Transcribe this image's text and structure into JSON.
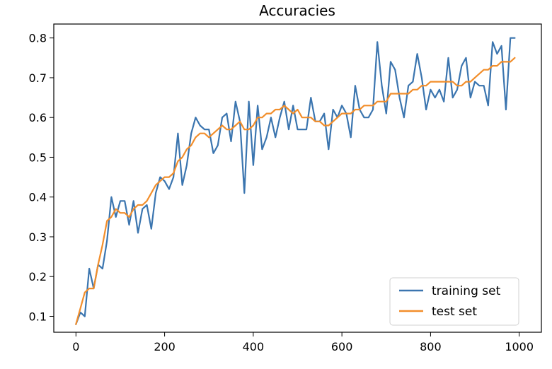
{
  "chart_data": {
    "type": "line",
    "title": "Accuracies",
    "xlabel": "",
    "ylabel": "",
    "xlim": [
      -50,
      1050
    ],
    "ylim": [
      0.06,
      0.835
    ],
    "xticks": [
      0,
      200,
      400,
      600,
      800,
      1000
    ],
    "yticks": [
      0.1,
      0.2,
      0.3,
      0.4,
      0.5,
      0.6,
      0.7,
      0.8
    ],
    "grid": false,
    "legend_position": "lower-right",
    "series": [
      {
        "name": "training set",
        "color": "#3b75af",
        "x": [
          0,
          10,
          20,
          30,
          40,
          50,
          60,
          70,
          80,
          90,
          100,
          110,
          120,
          130,
          140,
          150,
          160,
          170,
          180,
          190,
          200,
          210,
          220,
          230,
          240,
          250,
          260,
          270,
          280,
          290,
          300,
          310,
          320,
          330,
          340,
          350,
          360,
          370,
          380,
          390,
          400,
          410,
          420,
          430,
          440,
          450,
          460,
          470,
          480,
          490,
          500,
          510,
          520,
          530,
          540,
          550,
          560,
          570,
          580,
          590,
          600,
          610,
          620,
          630,
          640,
          650,
          660,
          670,
          680,
          690,
          700,
          710,
          720,
          730,
          740,
          750,
          760,
          770,
          780,
          790,
          800,
          810,
          820,
          830,
          840,
          850,
          860,
          870,
          880,
          890,
          900,
          910,
          920,
          930,
          940,
          950,
          960,
          970,
          980,
          990
        ],
        "values": [
          0.08,
          0.11,
          0.1,
          0.22,
          0.17,
          0.23,
          0.22,
          0.29,
          0.4,
          0.35,
          0.39,
          0.39,
          0.33,
          0.39,
          0.31,
          0.37,
          0.38,
          0.32,
          0.41,
          0.45,
          0.44,
          0.42,
          0.45,
          0.56,
          0.43,
          0.48,
          0.56,
          0.6,
          0.58,
          0.57,
          0.57,
          0.51,
          0.53,
          0.6,
          0.61,
          0.54,
          0.64,
          0.59,
          0.41,
          0.64,
          0.48,
          0.63,
          0.52,
          0.55,
          0.6,
          0.55,
          0.6,
          0.64,
          0.57,
          0.63,
          0.57,
          0.57,
          0.57,
          0.65,
          0.59,
          0.59,
          0.61,
          0.52,
          0.62,
          0.6,
          0.63,
          0.61,
          0.55,
          0.68,
          0.62,
          0.6,
          0.6,
          0.62,
          0.79,
          0.68,
          0.61,
          0.74,
          0.72,
          0.65,
          0.6,
          0.68,
          0.69,
          0.76,
          0.7,
          0.62,
          0.67,
          0.65,
          0.67,
          0.64,
          0.75,
          0.65,
          0.67,
          0.73,
          0.75,
          0.65,
          0.69,
          0.68,
          0.68,
          0.63,
          0.79,
          0.76,
          0.78,
          0.62,
          0.8,
          0.8
        ]
      },
      {
        "name": "test set",
        "color": "#f28e2b",
        "x": [
          0,
          10,
          20,
          30,
          40,
          50,
          60,
          70,
          80,
          90,
          100,
          110,
          120,
          130,
          140,
          150,
          160,
          170,
          180,
          190,
          200,
          210,
          220,
          230,
          240,
          250,
          260,
          270,
          280,
          290,
          300,
          310,
          320,
          330,
          340,
          350,
          360,
          370,
          380,
          390,
          400,
          410,
          420,
          430,
          440,
          450,
          460,
          470,
          480,
          490,
          500,
          510,
          520,
          530,
          540,
          550,
          560,
          570,
          580,
          590,
          600,
          610,
          620,
          630,
          640,
          650,
          660,
          670,
          680,
          690,
          700,
          710,
          720,
          730,
          740,
          750,
          760,
          770,
          780,
          790,
          800,
          810,
          820,
          830,
          840,
          850,
          860,
          870,
          880,
          890,
          900,
          910,
          920,
          930,
          940,
          950,
          960,
          970,
          980,
          990
        ],
        "values": [
          0.08,
          0.12,
          0.16,
          0.17,
          0.17,
          0.23,
          0.28,
          0.34,
          0.35,
          0.37,
          0.36,
          0.36,
          0.35,
          0.37,
          0.38,
          0.38,
          0.39,
          0.41,
          0.43,
          0.44,
          0.45,
          0.45,
          0.46,
          0.49,
          0.5,
          0.52,
          0.53,
          0.55,
          0.56,
          0.56,
          0.55,
          0.56,
          0.57,
          0.58,
          0.57,
          0.57,
          0.58,
          0.59,
          0.57,
          0.57,
          0.58,
          0.6,
          0.6,
          0.61,
          0.61,
          0.62,
          0.62,
          0.63,
          0.62,
          0.61,
          0.62,
          0.6,
          0.6,
          0.6,
          0.59,
          0.59,
          0.58,
          0.58,
          0.59,
          0.6,
          0.61,
          0.61,
          0.61,
          0.62,
          0.62,
          0.63,
          0.63,
          0.63,
          0.64,
          0.64,
          0.64,
          0.66,
          0.66,
          0.66,
          0.66,
          0.66,
          0.67,
          0.67,
          0.68,
          0.68,
          0.69,
          0.69,
          0.69,
          0.69,
          0.69,
          0.69,
          0.68,
          0.68,
          0.69,
          0.69,
          0.7,
          0.71,
          0.72,
          0.72,
          0.73,
          0.73,
          0.74,
          0.74,
          0.74,
          0.75
        ]
      }
    ]
  }
}
